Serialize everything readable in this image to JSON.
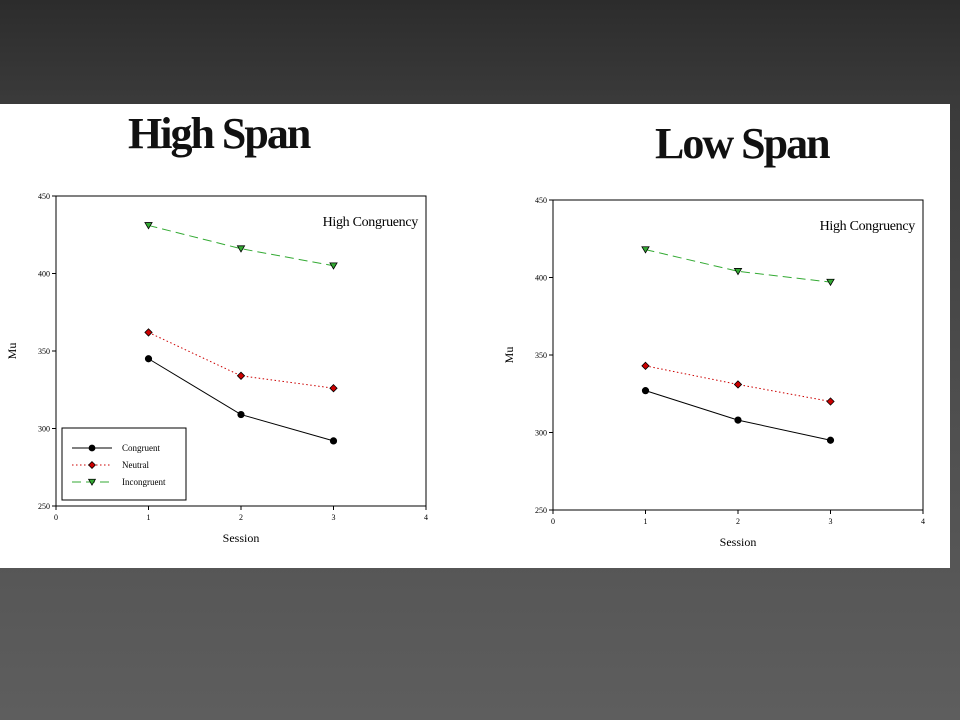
{
  "slide": {
    "titles": [
      "High Span",
      "Low Span"
    ]
  },
  "chart_data": [
    {
      "type": "line",
      "title": "High Span",
      "annotation": "High Congruency",
      "xlabel": "Session",
      "ylabel": "Mu",
      "xlim": [
        0,
        4
      ],
      "ylim": [
        250,
        450
      ],
      "xticks": [
        0,
        1,
        2,
        3,
        4
      ],
      "yticks": [
        250,
        300,
        350,
        400,
        450
      ],
      "grid": false,
      "legend": "bottom-left",
      "x": [
        1,
        2,
        3
      ],
      "series": [
        {
          "name": "Congruent",
          "values": [
            345,
            309,
            292
          ],
          "color": "#000000",
          "marker": "circle",
          "dash": "solid"
        },
        {
          "name": "Neutral",
          "values": [
            362,
            334,
            326
          ],
          "color": "#cc0000",
          "marker": "diamond",
          "dash": "dotted"
        },
        {
          "name": "Incongruent",
          "values": [
            431,
            416,
            405
          ],
          "color": "#33aa33",
          "marker": "triangle-down",
          "dash": "dashed"
        }
      ]
    },
    {
      "type": "line",
      "title": "Low Span",
      "annotation": "High Congruency",
      "xlabel": "Session",
      "ylabel": "Mu",
      "xlim": [
        0,
        4
      ],
      "ylim": [
        250,
        450
      ],
      "xticks": [
        0,
        1,
        2,
        3,
        4
      ],
      "yticks": [
        250,
        300,
        350,
        400,
        450
      ],
      "grid": false,
      "legend": "none",
      "x": [
        1,
        2,
        3
      ],
      "series": [
        {
          "name": "Congruent",
          "values": [
            327,
            308,
            295
          ],
          "color": "#000000",
          "marker": "circle",
          "dash": "solid"
        },
        {
          "name": "Neutral",
          "values": [
            343,
            331,
            320
          ],
          "color": "#cc0000",
          "marker": "diamond",
          "dash": "dotted"
        },
        {
          "name": "Incongruent",
          "values": [
            418,
            404,
            397
          ],
          "color": "#33aa33",
          "marker": "triangle-down",
          "dash": "dashed"
        }
      ]
    }
  ]
}
